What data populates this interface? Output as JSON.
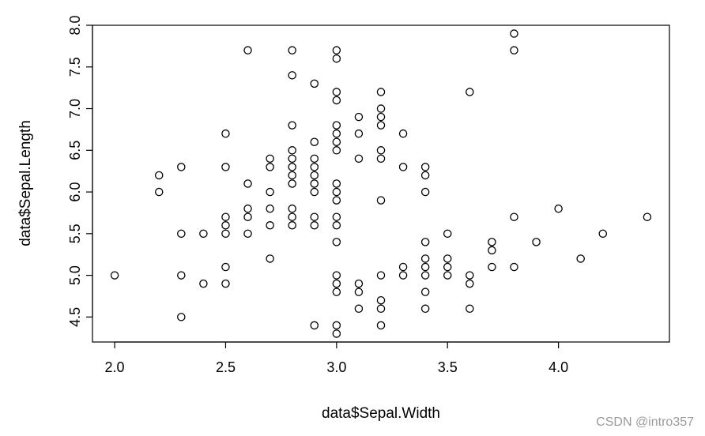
{
  "chart_data": {
    "type": "scatter",
    "xlabel": "data$Sepal.Width",
    "ylabel": "data$Sepal.Length",
    "xlim": [
      1.9,
      4.5
    ],
    "ylim": [
      4.2,
      8.0
    ],
    "x_ticks": [
      "2.0",
      "2.5",
      "3.0",
      "3.5",
      "4.0"
    ],
    "y_ticks": [
      "4.5",
      "5.0",
      "5.5",
      "6.0",
      "6.5",
      "7.0",
      "7.5",
      "8.0"
    ],
    "x_tick_values": [
      2.0,
      2.5,
      3.0,
      3.5,
      4.0
    ],
    "y_tick_values": [
      4.5,
      5.0,
      5.5,
      6.0,
      6.5,
      7.0,
      7.5,
      8.0
    ],
    "marker": "open-circle",
    "grid": false,
    "points": [
      [
        2.0,
        5.0
      ],
      [
        2.2,
        6.2
      ],
      [
        2.2,
        6.0
      ],
      [
        2.3,
        6.3
      ],
      [
        2.3,
        5.5
      ],
      [
        2.3,
        5.0
      ],
      [
        2.3,
        4.5
      ],
      [
        2.4,
        5.5
      ],
      [
        2.4,
        4.9
      ],
      [
        2.5,
        6.7
      ],
      [
        2.5,
        6.3
      ],
      [
        2.5,
        5.7
      ],
      [
        2.5,
        5.6
      ],
      [
        2.5,
        5.5
      ],
      [
        2.5,
        5.1
      ],
      [
        2.5,
        4.9
      ],
      [
        2.6,
        7.7
      ],
      [
        2.6,
        6.1
      ],
      [
        2.6,
        5.8
      ],
      [
        2.6,
        5.7
      ],
      [
        2.6,
        5.5
      ],
      [
        2.7,
        6.4
      ],
      [
        2.7,
        6.3
      ],
      [
        2.7,
        6.0
      ],
      [
        2.7,
        5.8
      ],
      [
        2.7,
        5.6
      ],
      [
        2.7,
        5.2
      ],
      [
        2.8,
        7.7
      ],
      [
        2.8,
        7.4
      ],
      [
        2.8,
        6.8
      ],
      [
        2.8,
        6.5
      ],
      [
        2.8,
        6.4
      ],
      [
        2.8,
        6.3
      ],
      [
        2.8,
        6.2
      ],
      [
        2.8,
        6.1
      ],
      [
        2.8,
        5.8
      ],
      [
        2.8,
        5.7
      ],
      [
        2.8,
        5.6
      ],
      [
        2.9,
        7.3
      ],
      [
        2.9,
        6.6
      ],
      [
        2.9,
        6.4
      ],
      [
        2.9,
        6.3
      ],
      [
        2.9,
        6.2
      ],
      [
        2.9,
        6.1
      ],
      [
        2.9,
        6.0
      ],
      [
        2.9,
        5.7
      ],
      [
        2.9,
        5.6
      ],
      [
        2.9,
        4.4
      ],
      [
        3.0,
        7.7
      ],
      [
        3.0,
        7.6
      ],
      [
        3.0,
        7.2
      ],
      [
        3.0,
        7.1
      ],
      [
        3.0,
        6.8
      ],
      [
        3.0,
        6.7
      ],
      [
        3.0,
        6.6
      ],
      [
        3.0,
        6.5
      ],
      [
        3.0,
        6.1
      ],
      [
        3.0,
        6.0
      ],
      [
        3.0,
        5.9
      ],
      [
        3.0,
        5.7
      ],
      [
        3.0,
        5.6
      ],
      [
        3.0,
        5.4
      ],
      [
        3.0,
        5.0
      ],
      [
        3.0,
        4.9
      ],
      [
        3.0,
        4.8
      ],
      [
        3.0,
        4.4
      ],
      [
        3.0,
        4.3
      ],
      [
        3.1,
        6.9
      ],
      [
        3.1,
        6.7
      ],
      [
        3.1,
        6.4
      ],
      [
        3.1,
        4.9
      ],
      [
        3.1,
        4.8
      ],
      [
        3.1,
        4.6
      ],
      [
        3.2,
        7.2
      ],
      [
        3.2,
        7.0
      ],
      [
        3.2,
        6.9
      ],
      [
        3.2,
        6.8
      ],
      [
        3.2,
        6.5
      ],
      [
        3.2,
        6.4
      ],
      [
        3.2,
        5.9
      ],
      [
        3.2,
        5.0
      ],
      [
        3.2,
        4.7
      ],
      [
        3.2,
        4.6
      ],
      [
        3.2,
        4.4
      ],
      [
        3.3,
        6.7
      ],
      [
        3.3,
        6.3
      ],
      [
        3.3,
        5.1
      ],
      [
        3.3,
        5.0
      ],
      [
        3.4,
        6.3
      ],
      [
        3.4,
        6.2
      ],
      [
        3.4,
        6.0
      ],
      [
        3.4,
        5.4
      ],
      [
        3.4,
        5.2
      ],
      [
        3.4,
        5.1
      ],
      [
        3.4,
        5.0
      ],
      [
        3.4,
        4.8
      ],
      [
        3.4,
        4.6
      ],
      [
        3.5,
        5.5
      ],
      [
        3.5,
        5.2
      ],
      [
        3.5,
        5.1
      ],
      [
        3.5,
        5.0
      ],
      [
        3.6,
        7.2
      ],
      [
        3.6,
        5.0
      ],
      [
        3.6,
        4.9
      ],
      [
        3.6,
        4.6
      ],
      [
        3.7,
        5.4
      ],
      [
        3.7,
        5.3
      ],
      [
        3.7,
        5.1
      ],
      [
        3.8,
        7.9
      ],
      [
        3.8,
        7.7
      ],
      [
        3.8,
        5.7
      ],
      [
        3.8,
        5.1
      ],
      [
        3.9,
        5.4
      ],
      [
        4.0,
        5.8
      ],
      [
        4.1,
        5.2
      ],
      [
        4.2,
        5.5
      ],
      [
        4.4,
        5.7
      ]
    ]
  },
  "watermark": "CSDN @intro357",
  "colors": {
    "points": "#000000",
    "frame": "#000000",
    "watermark": "#9a9a9a"
  }
}
